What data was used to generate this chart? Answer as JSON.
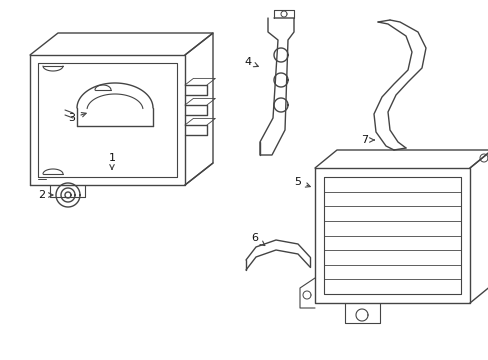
{
  "bg_color": "#ffffff",
  "line_color": "#444444",
  "lw": 1.0,
  "annotation_fontsize": 8
}
